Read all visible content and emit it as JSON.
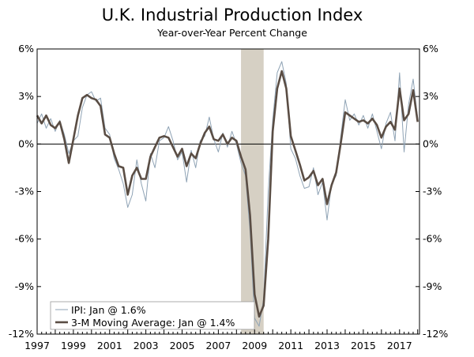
{
  "chart_data": {
    "type": "line",
    "title": "U.K. Industrial Production Index",
    "subtitle": "Year-over-Year Percent Change",
    "xlabel": "",
    "ylabel": "",
    "xlim": [
      1997.0,
      2018.1
    ],
    "ylim": [
      -12,
      6
    ],
    "y_ticks": [
      6,
      3,
      0,
      -3,
      -6,
      -9,
      -12
    ],
    "y_tick_labels_left": [
      "6%",
      "3%",
      "0%",
      "-3%",
      "-6%",
      "-9%",
      "-12%"
    ],
    "y_tick_labels_right": [
      "6%",
      "3%",
      "0%",
      "-3%",
      "-6%",
      "-9%",
      "-12%"
    ],
    "x_tick_labels": [
      "1997",
      "1999",
      "2001",
      "2003",
      "2005",
      "2007",
      "2009",
      "2011",
      "2013",
      "2015",
      "2017"
    ],
    "x_ticks": [
      1997,
      1999,
      2001,
      2003,
      2005,
      2007,
      2009,
      2011,
      2013,
      2015,
      2017
    ],
    "recession": {
      "start": 2008.25,
      "end": 2009.5,
      "color": "#d6d0c4"
    },
    "legend_position": "bottom-left",
    "series": [
      {
        "name": "IPI: Jan @ 1.6%",
        "color": "#8fa3b5",
        "width": 1,
        "points": [
          [
            1997.0,
            1.3
          ],
          [
            1997.25,
            1.9
          ],
          [
            1997.5,
            1.0
          ],
          [
            1997.75,
            1.6
          ],
          [
            1998.0,
            0.8
          ],
          [
            1998.25,
            1.5
          ],
          [
            1998.5,
            0.6
          ],
          [
            1998.75,
            -0.6
          ],
          [
            1999.0,
            0.2
          ],
          [
            1999.25,
            0.5
          ],
          [
            1999.5,
            2.3
          ],
          [
            1999.75,
            3.1
          ],
          [
            2000.0,
            3.3
          ],
          [
            2000.25,
            2.7
          ],
          [
            2000.5,
            2.9
          ],
          [
            2000.75,
            1.0
          ],
          [
            2001.0,
            0.6
          ],
          [
            2001.25,
            -0.9
          ],
          [
            2001.5,
            -1.6
          ],
          [
            2001.75,
            -2.5
          ],
          [
            2002.0,
            -4.0
          ],
          [
            2002.25,
            -3.2
          ],
          [
            2002.5,
            -1.0
          ],
          [
            2002.75,
            -2.5
          ],
          [
            2003.0,
            -3.6
          ],
          [
            2003.25,
            -0.6
          ],
          [
            2003.5,
            -1.5
          ],
          [
            2003.75,
            0.2
          ],
          [
            2004.0,
            0.4
          ],
          [
            2004.25,
            1.1
          ],
          [
            2004.5,
            0.2
          ],
          [
            2004.75,
            -1.0
          ],
          [
            2005.0,
            -0.5
          ],
          [
            2005.25,
            -2.4
          ],
          [
            2005.5,
            -0.4
          ],
          [
            2005.75,
            -1.5
          ],
          [
            2006.0,
            0.2
          ],
          [
            2006.25,
            0.5
          ],
          [
            2006.5,
            1.7
          ],
          [
            2006.75,
            0.3
          ],
          [
            2007.0,
            -0.5
          ],
          [
            2007.25,
            0.7
          ],
          [
            2007.5,
            -0.2
          ],
          [
            2007.75,
            0.8
          ],
          [
            2008.0,
            0.0
          ],
          [
            2008.25,
            -1.2
          ],
          [
            2008.5,
            -2.0
          ],
          [
            2008.75,
            -5.5
          ],
          [
            2009.0,
            -11.0
          ],
          [
            2009.25,
            -11.5
          ],
          [
            2009.5,
            -9.8
          ],
          [
            2009.75,
            -3.0
          ],
          [
            2010.0,
            1.5
          ],
          [
            2010.25,
            4.5
          ],
          [
            2010.5,
            5.2
          ],
          [
            2010.75,
            3.8
          ],
          [
            2011.0,
            -0.3
          ],
          [
            2011.25,
            -0.9
          ],
          [
            2011.5,
            -2.0
          ],
          [
            2011.75,
            -2.8
          ],
          [
            2012.0,
            -2.7
          ],
          [
            2012.25,
            -1.5
          ],
          [
            2012.5,
            -3.2
          ],
          [
            2012.75,
            -2.4
          ],
          [
            2013.0,
            -4.8
          ],
          [
            2013.25,
            -2.5
          ],
          [
            2013.5,
            -2.0
          ],
          [
            2013.75,
            0.4
          ],
          [
            2014.0,
            2.8
          ],
          [
            2014.25,
            1.5
          ],
          [
            2014.5,
            1.9
          ],
          [
            2014.75,
            1.2
          ],
          [
            2015.0,
            1.8
          ],
          [
            2015.25,
            1.0
          ],
          [
            2015.5,
            1.9
          ],
          [
            2015.75,
            0.8
          ],
          [
            2016.0,
            -0.3
          ],
          [
            2016.25,
            1.3
          ],
          [
            2016.5,
            2.0
          ],
          [
            2016.75,
            0.2
          ],
          [
            2017.0,
            4.5
          ],
          [
            2017.25,
            -0.5
          ],
          [
            2017.5,
            2.5
          ],
          [
            2017.75,
            4.1
          ],
          [
            2018.0,
            1.6
          ]
        ]
      },
      {
        "name": "3-M Moving Average: Jan @ 1.4%",
        "color": "#5a4d44",
        "width": 2.6,
        "points": [
          [
            1997.0,
            1.8
          ],
          [
            1997.25,
            1.3
          ],
          [
            1997.5,
            1.8
          ],
          [
            1997.75,
            1.2
          ],
          [
            1998.0,
            1.0
          ],
          [
            1998.25,
            1.4
          ],
          [
            1998.5,
            0.3
          ],
          [
            1998.75,
            -1.2
          ],
          [
            1999.0,
            0.3
          ],
          [
            1999.25,
            1.8
          ],
          [
            1999.5,
            2.9
          ],
          [
            1999.75,
            3.1
          ],
          [
            2000.0,
            2.9
          ],
          [
            2000.25,
            2.8
          ],
          [
            2000.5,
            2.4
          ],
          [
            2000.75,
            0.6
          ],
          [
            2001.0,
            0.4
          ],
          [
            2001.25,
            -0.6
          ],
          [
            2001.5,
            -1.4
          ],
          [
            2001.75,
            -1.5
          ],
          [
            2002.0,
            -3.2
          ],
          [
            2002.25,
            -2.0
          ],
          [
            2002.5,
            -1.5
          ],
          [
            2002.75,
            -2.2
          ],
          [
            2003.0,
            -2.2
          ],
          [
            2003.25,
            -0.8
          ],
          [
            2003.5,
            -0.2
          ],
          [
            2003.75,
            0.4
          ],
          [
            2004.0,
            0.5
          ],
          [
            2004.25,
            0.4
          ],
          [
            2004.5,
            -0.2
          ],
          [
            2004.75,
            -0.8
          ],
          [
            2005.0,
            -0.3
          ],
          [
            2005.25,
            -1.4
          ],
          [
            2005.5,
            -0.6
          ],
          [
            2005.75,
            -0.9
          ],
          [
            2006.0,
            0.0
          ],
          [
            2006.25,
            0.7
          ],
          [
            2006.5,
            1.1
          ],
          [
            2006.75,
            0.3
          ],
          [
            2007.0,
            0.2
          ],
          [
            2007.25,
            0.6
          ],
          [
            2007.5,
            0.0
          ],
          [
            2007.75,
            0.4
          ],
          [
            2008.0,
            0.2
          ],
          [
            2008.25,
            -0.8
          ],
          [
            2008.5,
            -1.6
          ],
          [
            2008.75,
            -4.5
          ],
          [
            2009.0,
            -9.5
          ],
          [
            2009.25,
            -10.9
          ],
          [
            2009.5,
            -10.2
          ],
          [
            2009.75,
            -6.0
          ],
          [
            2010.0,
            0.8
          ],
          [
            2010.25,
            3.5
          ],
          [
            2010.5,
            4.6
          ],
          [
            2010.75,
            3.5
          ],
          [
            2011.0,
            0.5
          ],
          [
            2011.25,
            -0.4
          ],
          [
            2011.5,
            -1.3
          ],
          [
            2011.75,
            -2.3
          ],
          [
            2012.0,
            -2.1
          ],
          [
            2012.25,
            -1.7
          ],
          [
            2012.5,
            -2.6
          ],
          [
            2012.75,
            -2.2
          ],
          [
            2013.0,
            -3.8
          ],
          [
            2013.25,
            -2.6
          ],
          [
            2013.5,
            -1.8
          ],
          [
            2013.75,
            0.0
          ],
          [
            2014.0,
            2.0
          ],
          [
            2014.25,
            1.8
          ],
          [
            2014.5,
            1.6
          ],
          [
            2014.75,
            1.4
          ],
          [
            2015.0,
            1.5
          ],
          [
            2015.25,
            1.3
          ],
          [
            2015.5,
            1.6
          ],
          [
            2015.75,
            1.2
          ],
          [
            2016.0,
            0.4
          ],
          [
            2016.25,
            1.1
          ],
          [
            2016.5,
            1.4
          ],
          [
            2016.75,
            0.9
          ],
          [
            2017.0,
            3.5
          ],
          [
            2017.25,
            1.5
          ],
          [
            2017.5,
            1.9
          ],
          [
            2017.75,
            3.4
          ],
          [
            2018.0,
            1.4
          ]
        ]
      }
    ],
    "legend": [
      "IPI: Jan @ 1.6%",
      "3-M Moving Average: Jan @ 1.4%"
    ]
  }
}
